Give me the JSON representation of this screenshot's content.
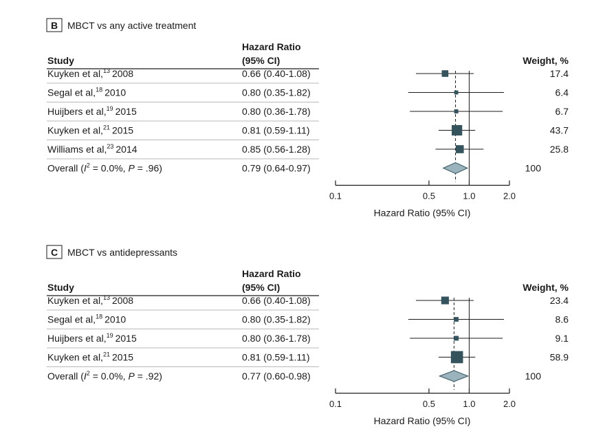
{
  "chart_data": [
    {
      "type": "forest",
      "panel_letter": "B",
      "title": "MBCT vs any active treatment",
      "col_study": "Study",
      "col_hr_line1": "Hazard Ratio",
      "col_hr_line2": "(95% CI)",
      "col_weight": "Weight, %",
      "rows": [
        {
          "author": "Kuyken et al,",
          "ref": "13",
          "year": "2008",
          "hr_text": "0.66 (0.40-1.08)",
          "hr": 0.66,
          "lo": 0.4,
          "hi": 1.08,
          "weight": 17.4,
          "weight_text": "17.4"
        },
        {
          "author": "Segal et al,",
          "ref": "18",
          "year": "2010",
          "hr_text": "0.80 (0.35-1.82)",
          "hr": 0.8,
          "lo": 0.35,
          "hi": 1.82,
          "weight": 6.4,
          "weight_text": "6.4"
        },
        {
          "author": "Huijbers et al,",
          "ref": "19",
          "year": "2015",
          "hr_text": "0.80 (0.36-1.78)",
          "hr": 0.8,
          "lo": 0.36,
          "hi": 1.78,
          "weight": 6.7,
          "weight_text": "6.7"
        },
        {
          "author": "Kuyken et al,",
          "ref": "21",
          "year": "2015",
          "hr_text": "0.81 (0.59-1.11)",
          "hr": 0.81,
          "lo": 0.59,
          "hi": 1.11,
          "weight": 43.7,
          "weight_text": "43.7"
        },
        {
          "author": "Williams et al,",
          "ref": "23",
          "year": "2014",
          "hr_text": "0.85 (0.56-1.28)",
          "hr": 0.85,
          "lo": 0.56,
          "hi": 1.28,
          "weight": 25.8,
          "weight_text": "25.8"
        }
      ],
      "overall": {
        "label_pre": "Overall (",
        "label_i": "I",
        "label_sup": "2",
        "label_post": " = 0.0%, ",
        "label_p": "P",
        "label_end": " = .96)",
        "hr_text": "0.79 (0.64-0.97)",
        "hr": 0.79,
        "lo": 0.64,
        "hi": 0.97,
        "weight_text": "100"
      },
      "x_scale": "log",
      "x_ticks": [
        {
          "v": 0.1,
          "t": "0.1"
        },
        {
          "v": 0.5,
          "t": "0.5"
        },
        {
          "v": 1.0,
          "t": "1.0"
        },
        {
          "v": 2.0,
          "t": "2.0"
        }
      ],
      "xlabel": "Hazard Ratio (95% CI)"
    },
    {
      "type": "forest",
      "panel_letter": "C",
      "title": "MBCT vs antidepressants",
      "col_study": "Study",
      "col_hr_line1": "Hazard Ratio",
      "col_hr_line2": "(95% CI)",
      "col_weight": "Weight, %",
      "rows": [
        {
          "author": "Kuyken et al,",
          "ref": "13",
          "year": "2008",
          "hr_text": "0.66 (0.40-1.08)",
          "hr": 0.66,
          "lo": 0.4,
          "hi": 1.08,
          "weight": 23.4,
          "weight_text": "23.4"
        },
        {
          "author": "Segal et al,",
          "ref": "18",
          "year": "2010",
          "hr_text": "0.80 (0.35-1.82)",
          "hr": 0.8,
          "lo": 0.35,
          "hi": 1.82,
          "weight": 8.6,
          "weight_text": "8.6"
        },
        {
          "author": "Huijbers et al,",
          "ref": "19",
          "year": "2015",
          "hr_text": "0.80 (0.36-1.78)",
          "hr": 0.8,
          "lo": 0.36,
          "hi": 1.78,
          "weight": 9.1,
          "weight_text": "9.1"
        },
        {
          "author": "Kuyken et al,",
          "ref": "21",
          "year": "2015",
          "hr_text": "0.81 (0.59-1.11)",
          "hr": 0.81,
          "lo": 0.59,
          "hi": 1.11,
          "weight": 58.9,
          "weight_text": "58.9"
        }
      ],
      "overall": {
        "label_pre": "Overall (",
        "label_i": "I",
        "label_sup": "2",
        "label_post": " = 0.0%, ",
        "label_p": "P",
        "label_end": " = .92)",
        "hr_text": "0.77 (0.60-0.98)",
        "hr": 0.77,
        "lo": 0.6,
        "hi": 0.98,
        "weight_text": "100"
      },
      "x_scale": "log",
      "x_ticks": [
        {
          "v": 0.1,
          "t": "0.1"
        },
        {
          "v": 0.5,
          "t": "0.5"
        },
        {
          "v": 1.0,
          "t": "1.0"
        },
        {
          "v": 2.0,
          "t": "2.0"
        }
      ],
      "xlabel": "Hazard Ratio (95% CI)"
    }
  ],
  "colors": {
    "marker": "#34535d",
    "diamond": "#9bb3bd",
    "diamond_stroke": "#34535d",
    "rule": "#1a1a1a",
    "row_rule": "#b8b8b8"
  }
}
